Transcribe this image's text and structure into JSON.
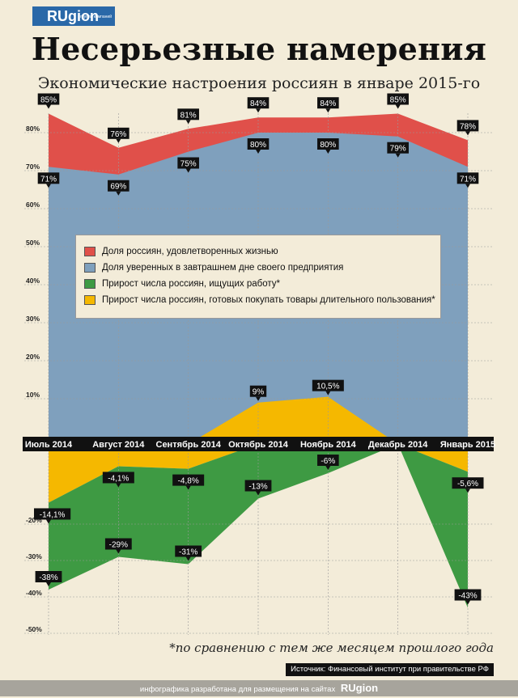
{
  "header": {
    "logo": "RUgion",
    "logo_small": "группа компаний",
    "title": "Несерьезные намерения",
    "subtitle": "Экономические настроения россиян в январе 2015-го"
  },
  "footnote": "*по сравнению с тем же месяцем прошлого года",
  "source": "Источник: Финансовый институт при правительстве РФ",
  "bottom_bar": {
    "text": "инфографика разработана для размещения на сайтах",
    "brand": "RUgion"
  },
  "colors": {
    "red": "#e0504a",
    "blue": "#7fa0bd",
    "green": "#3e9a43",
    "yellow": "#f5b800",
    "background": "#f3ecd9"
  },
  "chart_data": {
    "type": "area",
    "categories": [
      "Июль 2014",
      "Август 2014",
      "Сентябрь 2014",
      "Октябрь 2014",
      "Ноябрь 2014",
      "Декабрь 2014",
      "Январь 2015"
    ],
    "y_ticks": [
      "80%",
      "70%",
      "60%",
      "50%",
      "40%",
      "30%",
      "20%",
      "10%",
      "-20%",
      "-30%",
      "-40%",
      "-50%"
    ],
    "ylim": [
      -50,
      85
    ],
    "grid": true,
    "legend_position": "center",
    "series": [
      {
        "name": "Доля россиян, удовлетворенных жизнью",
        "values": [
          85,
          76,
          81,
          84,
          84,
          85,
          78
        ],
        "labels": [
          "85%",
          "76%",
          "81%",
          "84%",
          "84%",
          "85%",
          "78%"
        ]
      },
      {
        "name": "Доля уверенных в завтрашнем дне своего предприятия",
        "values": [
          71,
          69,
          75,
          80,
          80,
          79,
          71
        ],
        "labels": [
          "71%",
          "69%",
          "75%",
          "80%",
          "80%",
          "79%",
          "71%"
        ]
      },
      {
        "name": "Прирост числа россиян, ищущих работу*",
        "values": [
          -38,
          -29,
          -31,
          -13,
          -6,
          0,
          -43
        ],
        "labels": [
          "-38%",
          "-29%",
          "-31%",
          "-13%",
          "-6%",
          "",
          "-43%"
        ]
      },
      {
        "name": "Прирост числа россиян, готовых покупать товары длительного пользования*",
        "values": [
          -14.1,
          -4.1,
          -4.8,
          9,
          10.5,
          0,
          -5.6
        ],
        "labels": [
          "-14,1%",
          "-4,1%",
          "-4,8%",
          "9%",
          "10,5%",
          "",
          "-5,6%"
        ]
      }
    ]
  }
}
